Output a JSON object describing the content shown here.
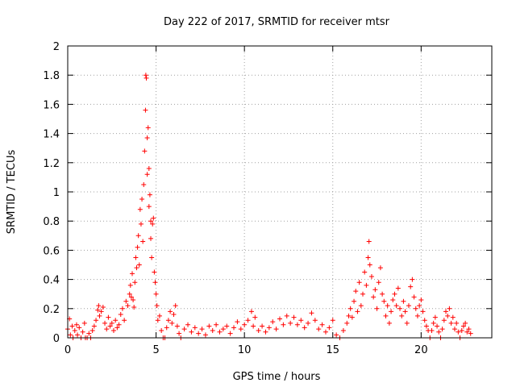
{
  "chart_data": {
    "type": "scatter",
    "title": "Day 222 of 2017, SRMTID for receiver mtsr",
    "xlabel": "GPS time / hours",
    "ylabel": "SRMTID / TECUs",
    "xlim": [
      0,
      24
    ],
    "ylim": [
      0,
      2
    ],
    "xticks": [
      0,
      5,
      10,
      15,
      20
    ],
    "xtick_labels": [
      "0",
      "5",
      "10",
      "15",
      "20"
    ],
    "yticks": [
      0,
      0.2,
      0.4,
      0.6,
      0.8,
      1,
      1.2,
      1.4,
      1.6,
      1.8,
      2
    ],
    "ytick_labels": [
      "0",
      "0.2",
      "0.4",
      "0.6",
      "0.8",
      "1",
      "1.2",
      "1.4",
      "1.6",
      "1.8",
      "2"
    ],
    "grid": true,
    "marker": "plus",
    "point_color": "#ff0000",
    "series": [
      {
        "points": [
          [
            0.0,
            0.06
          ],
          [
            0.1,
            0.13
          ],
          [
            0.15,
            0.02
          ],
          [
            0.25,
            0.08
          ],
          [
            0.3,
            0.0
          ],
          [
            0.4,
            0.05
          ],
          [
            0.5,
            0.09
          ],
          [
            0.55,
            0.02
          ],
          [
            0.65,
            0.07
          ],
          [
            0.75,
            0.0
          ],
          [
            0.85,
            0.04
          ],
          [
            0.95,
            0.1
          ],
          [
            1.0,
            0.0
          ],
          [
            1.1,
            0.0
          ],
          [
            1.2,
            0.03
          ],
          [
            1.3,
            0.0
          ],
          [
            1.4,
            0.05
          ],
          [
            1.5,
            0.08
          ],
          [
            1.6,
            0.12
          ],
          [
            1.7,
            0.19
          ],
          [
            1.75,
            0.22
          ],
          [
            1.8,
            0.15
          ],
          [
            1.9,
            0.18
          ],
          [
            2.0,
            0.21
          ],
          [
            2.1,
            0.1
          ],
          [
            2.2,
            0.06
          ],
          [
            2.3,
            0.14
          ],
          [
            2.4,
            0.08
          ],
          [
            2.5,
            0.1
          ],
          [
            2.6,
            0.05
          ],
          [
            2.7,
            0.12
          ],
          [
            2.8,
            0.07
          ],
          [
            2.9,
            0.09
          ],
          [
            3.0,
            0.16
          ],
          [
            3.1,
            0.2
          ],
          [
            3.2,
            0.12
          ],
          [
            3.3,
            0.25
          ],
          [
            3.4,
            0.22
          ],
          [
            3.5,
            0.3
          ],
          [
            3.55,
            0.36
          ],
          [
            3.6,
            0.28
          ],
          [
            3.65,
            0.44
          ],
          [
            3.7,
            0.26
          ],
          [
            3.75,
            0.21
          ],
          [
            3.8,
            0.38
          ],
          [
            3.85,
            0.55
          ],
          [
            3.9,
            0.48
          ],
          [
            3.95,
            0.62
          ],
          [
            4.0,
            0.7
          ],
          [
            4.05,
            0.5
          ],
          [
            4.1,
            0.88
          ],
          [
            4.15,
            0.78
          ],
          [
            4.2,
            0.95
          ],
          [
            4.25,
            0.66
          ],
          [
            4.3,
            1.05
          ],
          [
            4.35,
            1.28
          ],
          [
            4.4,
            1.56
          ],
          [
            4.42,
            1.8
          ],
          [
            4.45,
            1.78
          ],
          [
            4.5,
            1.37
          ],
          [
            4.5,
            1.12
          ],
          [
            4.55,
            1.44
          ],
          [
            4.6,
            1.16
          ],
          [
            4.6,
            0.9
          ],
          [
            4.65,
            0.98
          ],
          [
            4.7,
            0.8
          ],
          [
            4.7,
            0.68
          ],
          [
            4.75,
            0.55
          ],
          [
            4.8,
            0.78
          ],
          [
            4.85,
            0.82
          ],
          [
            4.9,
            0.45
          ],
          [
            4.95,
            0.38
          ],
          [
            5.0,
            0.3
          ],
          [
            5.05,
            0.22
          ],
          [
            5.1,
            0.12
          ],
          [
            5.2,
            0.15
          ],
          [
            5.3,
            0.05
          ],
          [
            5.4,
            0.0
          ],
          [
            5.5,
            0.0
          ],
          [
            5.6,
            0.07
          ],
          [
            5.7,
            0.12
          ],
          [
            5.8,
            0.18
          ],
          [
            5.9,
            0.1
          ],
          [
            6.0,
            0.16
          ],
          [
            6.1,
            0.22
          ],
          [
            6.2,
            0.08
          ],
          [
            6.3,
            0.03
          ],
          [
            6.4,
            0.0
          ],
          [
            6.6,
            0.06
          ],
          [
            6.8,
            0.09
          ],
          [
            7.0,
            0.04
          ],
          [
            7.2,
            0.07
          ],
          [
            7.4,
            0.03
          ],
          [
            7.6,
            0.06
          ],
          [
            7.8,
            0.02
          ],
          [
            8.0,
            0.08
          ],
          [
            8.2,
            0.05
          ],
          [
            8.4,
            0.09
          ],
          [
            8.6,
            0.04
          ],
          [
            8.8,
            0.06
          ],
          [
            9.0,
            0.08
          ],
          [
            9.2,
            0.03
          ],
          [
            9.4,
            0.07
          ],
          [
            9.6,
            0.11
          ],
          [
            9.8,
            0.06
          ],
          [
            10.0,
            0.09
          ],
          [
            10.2,
            0.12
          ],
          [
            10.4,
            0.18
          ],
          [
            10.5,
            0.08
          ],
          [
            10.6,
            0.14
          ],
          [
            10.8,
            0.05
          ],
          [
            11.0,
            0.08
          ],
          [
            11.2,
            0.04
          ],
          [
            11.4,
            0.07
          ],
          [
            11.6,
            0.11
          ],
          [
            11.8,
            0.06
          ],
          [
            12.0,
            0.13
          ],
          [
            12.2,
            0.09
          ],
          [
            12.4,
            0.15
          ],
          [
            12.6,
            0.1
          ],
          [
            12.8,
            0.14
          ],
          [
            13.0,
            0.09
          ],
          [
            13.2,
            0.12
          ],
          [
            13.4,
            0.07
          ],
          [
            13.6,
            0.1
          ],
          [
            13.8,
            0.17
          ],
          [
            14.0,
            0.12
          ],
          [
            14.2,
            0.06
          ],
          [
            14.4,
            0.09
          ],
          [
            14.6,
            0.04
          ],
          [
            14.8,
            0.07
          ],
          [
            15.0,
            0.12
          ],
          [
            15.2,
            0.02
          ],
          [
            15.4,
            0.0
          ],
          [
            15.6,
            0.05
          ],
          [
            15.8,
            0.1
          ],
          [
            15.9,
            0.15
          ],
          [
            16.0,
            0.2
          ],
          [
            16.1,
            0.14
          ],
          [
            16.2,
            0.25
          ],
          [
            16.3,
            0.32
          ],
          [
            16.4,
            0.18
          ],
          [
            16.5,
            0.38
          ],
          [
            16.6,
            0.22
          ],
          [
            16.7,
            0.3
          ],
          [
            16.8,
            0.45
          ],
          [
            16.9,
            0.36
          ],
          [
            17.0,
            0.55
          ],
          [
            17.05,
            0.66
          ],
          [
            17.1,
            0.5
          ],
          [
            17.2,
            0.42
          ],
          [
            17.3,
            0.28
          ],
          [
            17.4,
            0.33
          ],
          [
            17.5,
            0.2
          ],
          [
            17.6,
            0.38
          ],
          [
            17.7,
            0.48
          ],
          [
            17.8,
            0.3
          ],
          [
            17.9,
            0.25
          ],
          [
            18.0,
            0.15
          ],
          [
            18.1,
            0.22
          ],
          [
            18.2,
            0.1
          ],
          [
            18.3,
            0.18
          ],
          [
            18.4,
            0.26
          ],
          [
            18.5,
            0.3
          ],
          [
            18.6,
            0.22
          ],
          [
            18.7,
            0.34
          ],
          [
            18.8,
            0.2
          ],
          [
            18.9,
            0.15
          ],
          [
            19.0,
            0.25
          ],
          [
            19.1,
            0.18
          ],
          [
            19.2,
            0.1
          ],
          [
            19.3,
            0.22
          ],
          [
            19.4,
            0.35
          ],
          [
            19.5,
            0.4
          ],
          [
            19.6,
            0.28
          ],
          [
            19.7,
            0.2
          ],
          [
            19.8,
            0.15
          ],
          [
            19.9,
            0.22
          ],
          [
            20.0,
            0.26
          ],
          [
            20.1,
            0.18
          ],
          [
            20.2,
            0.12
          ],
          [
            20.3,
            0.08
          ],
          [
            20.4,
            0.05
          ],
          [
            20.5,
            0.0
          ],
          [
            20.6,
            0.05
          ],
          [
            20.7,
            0.1
          ],
          [
            20.8,
            0.14
          ],
          [
            20.9,
            0.08
          ],
          [
            21.0,
            0.04
          ],
          [
            21.1,
            0.0
          ],
          [
            21.2,
            0.06
          ],
          [
            21.3,
            0.12
          ],
          [
            21.4,
            0.18
          ],
          [
            21.5,
            0.15
          ],
          [
            21.6,
            0.2
          ],
          [
            21.7,
            0.1
          ],
          [
            21.8,
            0.14
          ],
          [
            21.9,
            0.06
          ],
          [
            22.0,
            0.1
          ],
          [
            22.1,
            0.04
          ],
          [
            22.2,
            0.0
          ],
          [
            22.3,
            0.05
          ],
          [
            22.4,
            0.08
          ],
          [
            22.5,
            0.1
          ],
          [
            22.6,
            0.04
          ],
          [
            22.7,
            0.06
          ],
          [
            22.8,
            0.03
          ]
        ]
      }
    ]
  }
}
